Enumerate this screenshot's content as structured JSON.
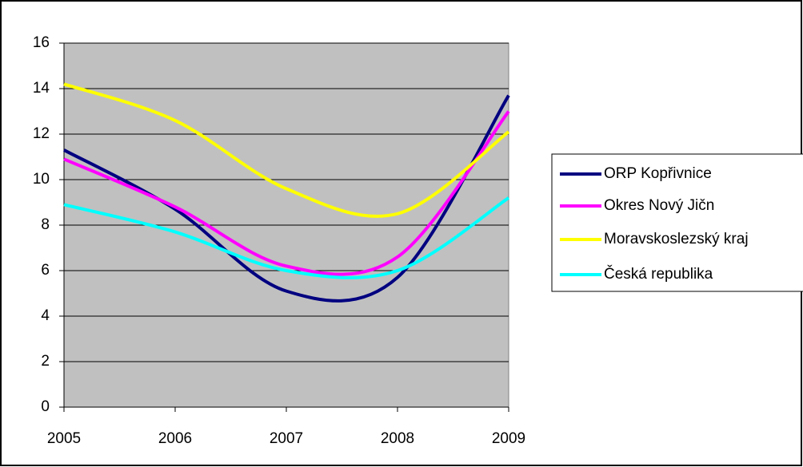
{
  "chart_data": {
    "type": "line",
    "x": [
      2005,
      2006,
      2007,
      2008,
      2009
    ],
    "series": [
      {
        "name": "ORP Kopřivnice",
        "color": "#000080",
        "values": [
          11.3,
          8.7,
          5.1,
          5.7,
          13.7
        ]
      },
      {
        "name": "Okres Nový Jičn",
        "color": "#ff00ff",
        "values": [
          10.9,
          8.8,
          6.2,
          6.6,
          13.0
        ]
      },
      {
        "name": "Moravskoslezský kraj",
        "color": "#ffff00",
        "values": [
          14.2,
          12.6,
          9.6,
          8.5,
          12.1
        ]
      },
      {
        "name": "Česká republika",
        "color": "#00ffff",
        "values": [
          8.9,
          7.7,
          6.0,
          6.0,
          9.2
        ]
      }
    ],
    "xlim": [
      2005,
      2009
    ],
    "xticks": [
      2005,
      2006,
      2007,
      2008,
      2009
    ],
    "ylim": [
      0,
      16
    ],
    "yticks": [
      0,
      2,
      4,
      6,
      8,
      10,
      12,
      14,
      16
    ],
    "grid": true,
    "smooth": true,
    "legend": "right"
  }
}
